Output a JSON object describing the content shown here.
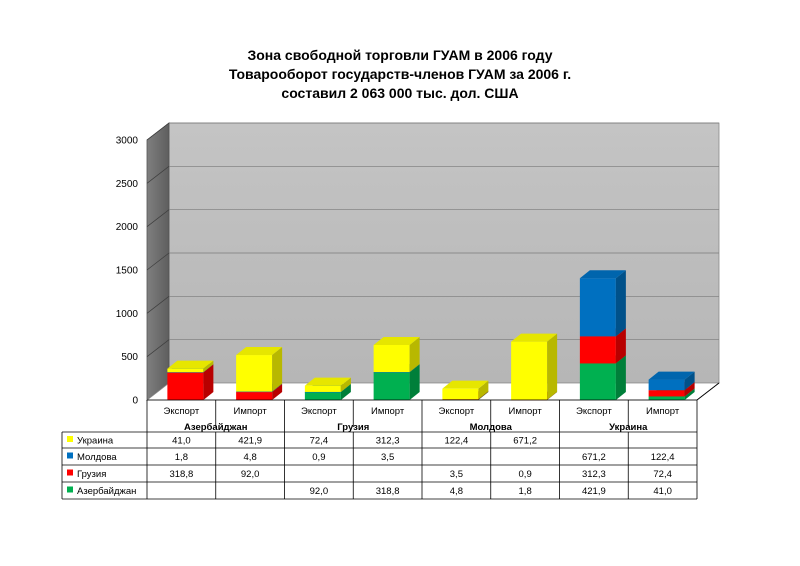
{
  "chart_data": {
    "type": "bar",
    "stacked": true,
    "three_d": true,
    "title_lines": [
      "Зона свободной торговли ГУАМ в 2006 году",
      "Товарооборот государств-членов ГУАМ за 2006 г.",
      "составил 2 063 000 тыс. дол. США"
    ],
    "ylim": [
      0,
      3000
    ],
    "yticks": [
      "0",
      "500",
      "1000",
      "1500",
      "2000",
      "2500",
      "3000"
    ],
    "grid": true,
    "groups": [
      "Азербайджан",
      "Грузия",
      "Молдова",
      "Украина"
    ],
    "categories": [
      "Экспорт",
      "Импорт",
      "Экспорт",
      "Импорт",
      "Экспорт",
      "Импорт",
      "Экспорт",
      "Импорт"
    ],
    "series": [
      {
        "name": "Украина",
        "color": "#ffff00",
        "values": [
          41.0,
          421.9,
          72.4,
          312.3,
          122.4,
          671.2,
          null,
          null
        ],
        "labels": [
          "41,0",
          "421,9",
          "72,4",
          "312,3",
          "122,4",
          "671,2",
          "",
          ""
        ]
      },
      {
        "name": "Молдова",
        "color": "#0070c0",
        "values": [
          1.8,
          4.8,
          0.9,
          3.5,
          null,
          null,
          671.2,
          122.4
        ],
        "labels": [
          "1,8",
          "4,8",
          "0,9",
          "3,5",
          "",
          "",
          "671,2",
          "122,4"
        ]
      },
      {
        "name": "Грузия",
        "color": "#ff0000",
        "values": [
          318.8,
          92.0,
          null,
          null,
          3.5,
          0.9,
          312.3,
          72.4
        ],
        "labels": [
          "318,8",
          "92,0",
          "",
          "",
          "3,5",
          "0,9",
          "312,3",
          "72,4"
        ]
      },
      {
        "name": "Азербайджан",
        "color": "#00b050",
        "values": [
          null,
          null,
          92.0,
          318.8,
          4.8,
          1.8,
          421.9,
          41.0
        ],
        "labels": [
          "",
          "",
          "92,0",
          "318,8",
          "4,8",
          "1,8",
          "421,9",
          "41,0"
        ]
      }
    ],
    "legend_placement": "table-left"
  }
}
